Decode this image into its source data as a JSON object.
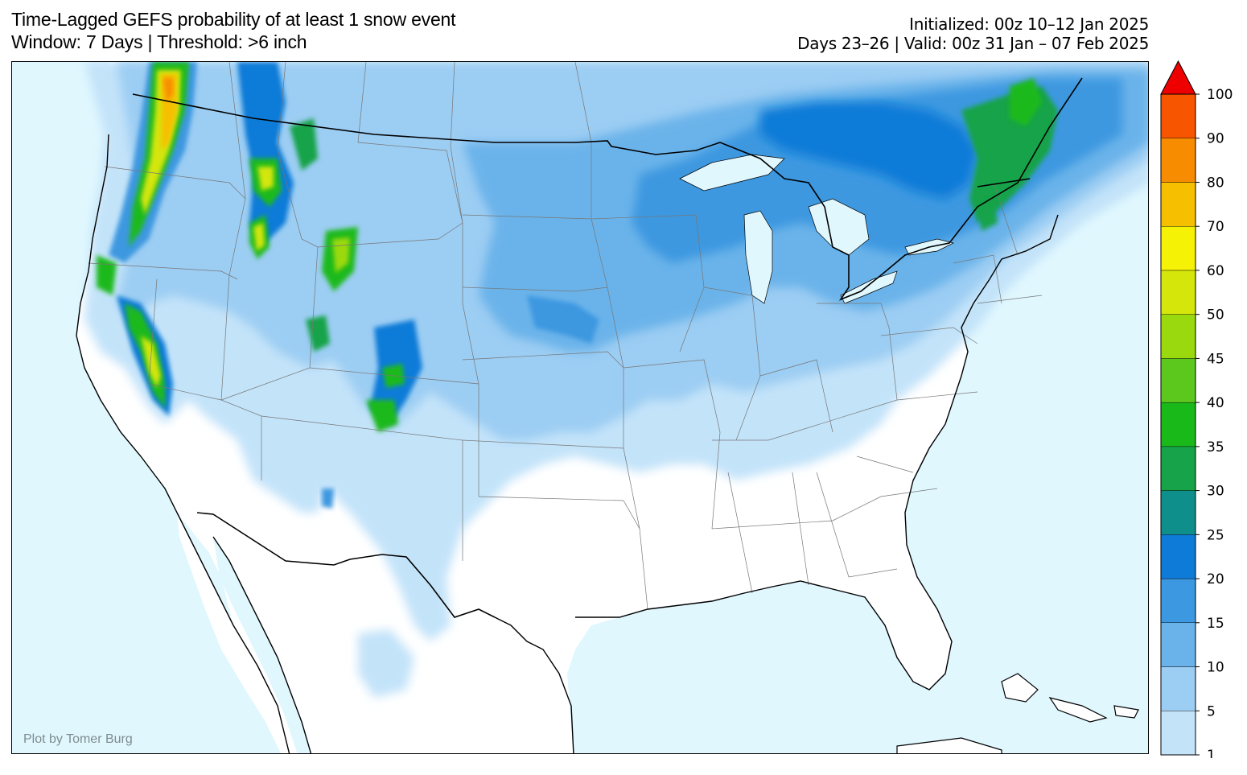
{
  "title": {
    "line1": "Time-Lagged GEFS probability of at least 1 snow event",
    "line2": "Window: 7 Days | Threshold: >6 inch"
  },
  "info": {
    "initialized": "Initialized: 00z 10–12 Jan 2025",
    "valid": "Days 23–26 | Valid: 00z 31 Jan – 07 Feb 2025"
  },
  "credit": "Plot by Tomer Burg",
  "colorbar": {
    "ticks": [
      "1",
      "5",
      "10",
      "15",
      "20",
      "25",
      "30",
      "35",
      "40",
      "45",
      "50",
      "60",
      "70",
      "80",
      "90",
      "100"
    ],
    "colors": [
      "#c3e3f9",
      "#9ccdf3",
      "#6ab3ea",
      "#3c98e0",
      "#0f7bd8",
      "#0f8f8c",
      "#16a34a",
      "#1ab91a",
      "#5cc81d",
      "#9bd90f",
      "#d4e60a",
      "#f5f205",
      "#f6c000",
      "#f88c00",
      "#f85500",
      "#ee0000"
    ],
    "extend_color": "#ee0000"
  },
  "map": {
    "ocean_color": "#e0f7fe",
    "land_color": "#ffffff",
    "hotspots": [
      {
        "region": "Cascades WA",
        "prob": "60-70"
      },
      {
        "region": "Northern Rockies ID/MT",
        "prob": "40-50"
      },
      {
        "region": "Sierra Nevada CA",
        "prob": "40-50"
      },
      {
        "region": "Wyoming ranges",
        "prob": "35-45"
      },
      {
        "region": "Colorado Rockies",
        "prob": "30-45"
      },
      {
        "region": "New England / Quebec",
        "prob": "30-40"
      }
    ]
  }
}
